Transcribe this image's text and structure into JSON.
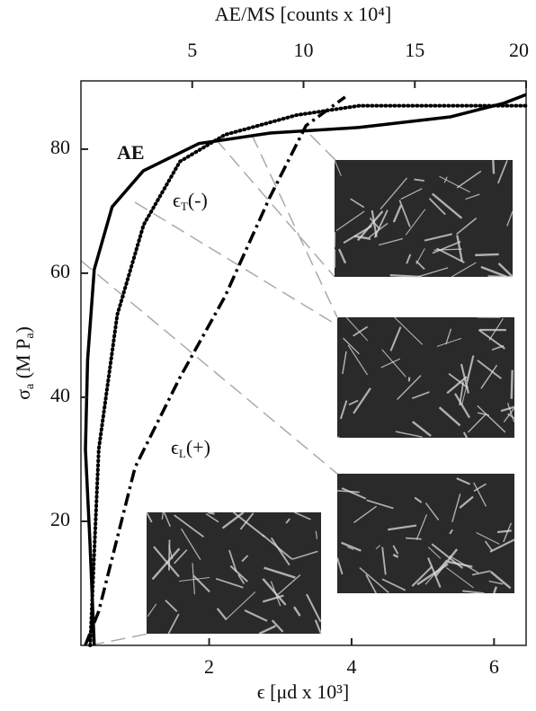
{
  "chart_data": {
    "type": "line",
    "top_axis_label": "AE/MS [counts x 10⁴]",
    "x_label": "ϵ [μd x 10³]",
    "y_label": [
      "σ",
      "a",
      " (M P",
      "a",
      ")"
    ],
    "xlim": [
      0.2,
      6.45
    ],
    "xticks": [
      2,
      4,
      6
    ],
    "x2lim": [
      0,
      20
    ],
    "x2ticks": [
      5,
      10,
      15,
      20
    ],
    "ylim": [
      0,
      91
    ],
    "yticks": [
      20,
      40,
      60,
      80
    ],
    "series": [
      {
        "label": [
          "AE"
        ],
        "color": "#000000",
        "line_style": "solid",
        "axis": "x2",
        "x": [
          0.6,
          0.4,
          0.2,
          0.3,
          0.6,
          1.4,
          2.8,
          5.3,
          8.5,
          12.5,
          16.6,
          19,
          20
        ],
        "values": [
          0,
          17,
          31.6,
          46,
          60.6,
          70.7,
          76.5,
          80.9,
          82.6,
          83.5,
          85.2,
          87.4,
          88.8
        ]
      },
      {
        "label": [
          "ϵ",
          "T",
          "(-)"
        ],
        "color": "#000000",
        "line_style": "dotted",
        "x": [
          0.33,
          0.45,
          0.71,
          1.08,
          1.59,
          2.22,
          3.23,
          4.11,
          6.45
        ],
        "values": [
          0,
          31.6,
          53.3,
          67.8,
          78,
          82.3,
          85.5,
          87,
          87
        ]
      },
      {
        "label": [
          "ϵ",
          "L",
          "(+)"
        ],
        "color": "#000000",
        "line_style": "dashdot",
        "x": [
          0.26,
          0.45,
          0.96,
          1.59,
          2.22,
          2.85,
          3.36,
          3.91
        ],
        "values": [
          0,
          5.5,
          28.7,
          43.2,
          56.2,
          72.2,
          83.8,
          88.4
        ]
      }
    ]
  }
}
